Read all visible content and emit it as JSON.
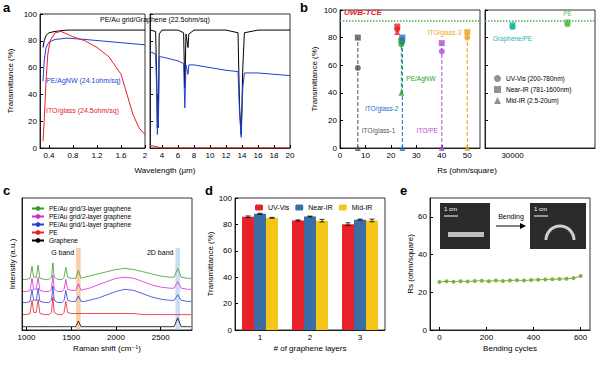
{
  "chart_data": [
    {
      "panel": "a",
      "type": "line",
      "x_label": "Wavelength (μm)",
      "y_label": "Transmittance (%)",
      "segments": [
        {
          "xlim": [
            0.25,
            2
          ],
          "xticks": [
            0.4,
            0.8,
            1.2,
            1.6,
            2
          ]
        },
        {
          "xlim": [
            2.5,
            20
          ],
          "xticks": [
            4,
            6,
            8,
            10,
            12,
            14,
            16,
            18,
            20
          ]
        }
      ],
      "ylim": [
        0,
        100
      ],
      "yticks": [
        0,
        20,
        40,
        60,
        80,
        100
      ],
      "grid": false,
      "series": [
        {
          "name": "PE/Au grid/Graphene (22.5ohm/sq)",
          "color": "#000000",
          "x": [
            0.3,
            0.32,
            0.35,
            0.4,
            0.5,
            0.7,
            1,
            1.5,
            2,
            2.5,
            3.2,
            3.35,
            3.42,
            3.5,
            3.55,
            3.65,
            4,
            6,
            6.7,
            6.85,
            7,
            7.25,
            7.35,
            8,
            10,
            12,
            13.5,
            13.7,
            13.9,
            14.1,
            14.3,
            16,
            18,
            20
          ],
          "values": [
            75,
            80,
            84,
            86,
            87,
            88,
            88,
            88,
            88,
            88,
            87,
            50,
            15,
            40,
            20,
            85,
            88,
            88,
            86,
            45,
            85,
            75,
            85,
            88,
            88,
            88,
            86,
            30,
            10,
            60,
            86,
            88,
            88,
            88
          ]
        },
        {
          "name": "PE/AgNW (24.1ohm/sq)",
          "color": "#1f3fd8",
          "x": [
            0.3,
            0.32,
            0.35,
            0.4,
            0.5,
            0.7,
            1,
            1.5,
            2,
            2.5,
            3.2,
            3.35,
            3.42,
            3.5,
            3.55,
            3.65,
            4,
            6,
            6.7,
            6.85,
            7,
            7.25,
            7.35,
            8,
            10,
            12,
            13.5,
            13.7,
            13.9,
            14.1,
            14.3,
            16,
            18,
            20
          ],
          "values": [
            50,
            65,
            75,
            79,
            81,
            82,
            81,
            79,
            77,
            72,
            70,
            40,
            10,
            35,
            15,
            68,
            68,
            65,
            63,
            30,
            62,
            55,
            62,
            62,
            60,
            58,
            57,
            25,
            8,
            45,
            56,
            56,
            55,
            54
          ]
        },
        {
          "name": "ITO/glass (24.5ohm/sq)",
          "color": "#e8202a",
          "x": [
            0.3,
            0.32,
            0.35,
            0.38,
            0.42,
            0.5,
            0.6,
            0.7,
            0.8,
            1,
            1.2,
            1.4,
            1.6,
            1.7,
            1.8,
            1.9,
            2,
            2.5,
            4,
            20
          ],
          "values": [
            5,
            20,
            50,
            70,
            80,
            86,
            87,
            85,
            83,
            80,
            75,
            68,
            55,
            40,
            25,
            15,
            10,
            2,
            0,
            0
          ]
        }
      ]
    },
    {
      "panel": "b",
      "type": "scatter",
      "x_label": "Rs (ohm/square)",
      "y_label": "Transmittance (%)",
      "segments": [
        {
          "xlim": [
            0,
            55
          ],
          "xticks": [
            0,
            10,
            20,
            30,
            40,
            50
          ]
        },
        {
          "categories": [
            "30000",
            null
          ]
        }
      ],
      "ylim": [
        0,
        100
      ],
      "yticks": [
        0,
        20,
        40,
        60,
        80,
        100
      ],
      "grid": false,
      "legend": "right",
      "series": [
        {
          "name": "UV-Vis (200-780nm)",
          "marker": "circle"
        },
        {
          "name": "Near-IR (781-1600nm)",
          "marker": "square"
        },
        {
          "name": "Mid-IR (2.5-20um)",
          "marker": "triangle"
        }
      ],
      "materials": [
        {
          "name": "ITO/glass-1",
          "color": "#555555",
          "rs": 7,
          "values": [
            58,
            80,
            0
          ]
        },
        {
          "color": "#e8202a",
          "rs": 22.5,
          "values": [
            86,
            88,
            84
          ]
        },
        {
          "name": "PE/AgNW",
          "color": "#2ca02c",
          "rs": 24.1,
          "values": [
            75,
            78,
            40
          ]
        },
        {
          "name": "ITO/glass-2",
          "color": "#1f6fd0",
          "rs": 24.5,
          "values": [
            77,
            80,
            0
          ]
        },
        {
          "name": "ITO/PE",
          "color": "#b04fd8",
          "rs": 40,
          "values": [
            70,
            76,
            0
          ]
        },
        {
          "name": "ITO/glass-3",
          "color": "#f0a020",
          "rs": 50,
          "values": [
            80,
            84,
            0
          ]
        },
        {
          "name": "Graphene/PE",
          "color": "#1fb5a6",
          "rs": 30000,
          "values": [
            88,
            89,
            88
          ]
        },
        {
          "name": "PE",
          "color": "#5cbf4a",
          "rs": null,
          "values": [
            90,
            91,
            90
          ]
        }
      ],
      "threshold": {
        "label": "UWB-TCE",
        "value": 92,
        "color": "#e8202a"
      }
    },
    {
      "panel": "c",
      "type": "line",
      "x_label": "Raman shift (cm⁻¹)",
      "y_label": "Intensity (a.u.)",
      "xlim": [
        950,
        2850
      ],
      "xticks": [
        1000,
        1500,
        2000,
        2500
      ],
      "ylim": [
        0,
        12
      ],
      "tick_labels": "x",
      "grid": false,
      "legend": "top-left",
      "x": [
        960,
        1000,
        1040,
        1062,
        1080,
        1110,
        1130,
        1150,
        1200,
        1250,
        1280,
        1295,
        1310,
        1350,
        1400,
        1420,
        1440,
        1460,
        1500,
        1550,
        1580,
        1610,
        1650,
        1700,
        1800,
        1900,
        2000,
        2100,
        2200,
        2300,
        2400,
        2500,
        2600,
        2650,
        2690,
        2730,
        2800,
        2840
      ],
      "series": [
        {
          "name": "PE/Au grid/3-layer graphene",
          "color": "#3a9d23",
          "values": [
            4.6,
            4.6,
            4.7,
            5.8,
            4.8,
            4.8,
            5.9,
            4.7,
            4.6,
            4.6,
            4.8,
            6.1,
            4.8,
            4.6,
            4.6,
            4.8,
            5.7,
            4.8,
            4.7,
            4.7,
            5.4,
            4.7,
            4.8,
            4.9,
            5.1,
            5.3,
            5.5,
            5.6,
            5.5,
            5.3,
            5.1,
            4.9,
            4.8,
            4.8,
            5.6,
            4.8,
            4.7,
            4.7
          ]
        },
        {
          "name": "PE/Au grid/2-layer graphene",
          "color": "#d62ad6",
          "values": [
            3.5,
            3.5,
            3.6,
            4.7,
            3.7,
            3.7,
            4.8,
            3.6,
            3.5,
            3.5,
            3.7,
            5.0,
            3.7,
            3.5,
            3.5,
            3.7,
            4.6,
            3.7,
            3.6,
            3.6,
            4.2,
            3.6,
            3.7,
            3.8,
            4.1,
            4.4,
            4.7,
            4.8,
            4.7,
            4.4,
            4.1,
            3.9,
            3.8,
            3.8,
            4.4,
            3.8,
            3.7,
            3.7
          ]
        },
        {
          "name": "PE/Au grid/1-layer graphene",
          "color": "#2b3fd6",
          "values": [
            2.5,
            2.5,
            2.6,
            3.7,
            2.7,
            2.7,
            3.8,
            2.6,
            2.5,
            2.5,
            2.7,
            4.0,
            2.7,
            2.5,
            2.5,
            2.7,
            3.6,
            2.7,
            2.6,
            2.6,
            3.1,
            2.6,
            2.6,
            2.7,
            2.9,
            3.2,
            3.5,
            3.7,
            3.6,
            3.3,
            3.0,
            2.8,
            2.7,
            2.7,
            3.2,
            2.7,
            2.6,
            2.6
          ]
        },
        {
          "name": "PE",
          "color": "#e8202a",
          "values": [
            1.4,
            1.4,
            1.5,
            2.7,
            1.6,
            1.6,
            2.8,
            1.5,
            1.4,
            1.4,
            1.6,
            3.0,
            1.6,
            1.4,
            1.4,
            1.6,
            2.6,
            1.6,
            1.5,
            1.5,
            1.5,
            1.5,
            1.5,
            1.5,
            1.5,
            1.5,
            1.5,
            1.5,
            1.5,
            1.4,
            1.4,
            1.4,
            1.4,
            1.4,
            1.4,
            1.4,
            1.4,
            1.4
          ]
        },
        {
          "name": "Graphene",
          "color": "#000000",
          "values": [
            0.3,
            0.3,
            0.3,
            0.3,
            0.3,
            0.3,
            0.3,
            0.3,
            0.3,
            0.3,
            0.3,
            0.3,
            0.3,
            0.3,
            0.3,
            0.3,
            0.3,
            0.3,
            0.3,
            0.3,
            0.8,
            0.3,
            0.3,
            0.3,
            0.3,
            0.3,
            0.3,
            0.3,
            0.3,
            0.3,
            0.3,
            0.3,
            0.3,
            0.3,
            1.1,
            0.3,
            0.3,
            0.3
          ]
        }
      ],
      "bands": [
        {
          "label": "G band",
          "range": [
            1555,
            1605
          ],
          "color": "#f4a460"
        },
        {
          "label": "2D band",
          "range": [
            2665,
            2715
          ],
          "color": "#9cc3e6"
        }
      ]
    },
    {
      "panel": "d",
      "type": "bar",
      "x_label": "# of graphene layers",
      "y_label": "Transmittance (%)",
      "categories": [
        "1",
        "2",
        "3"
      ],
      "ylim": [
        0,
        100
      ],
      "yticks": [
        0,
        20,
        40,
        60,
        80,
        100
      ],
      "grid": false,
      "legend": "top",
      "series": [
        {
          "name": "UV-Vis",
          "color": "#e8202a",
          "values": [
            85.8,
            83.0,
            80.2
          ],
          "errors": [
            0.6,
            0.4,
            1.0
          ]
        },
        {
          "name": "Near-IR",
          "color": "#3a6ea5",
          "values": [
            88.0,
            86.0,
            83.6
          ],
          "errors": [
            0.4,
            0.3,
            0.4
          ]
        },
        {
          "name": "Mid-IR",
          "color": "#f5c518",
          "values": [
            85.0,
            82.8,
            83.0
          ],
          "errors": [
            0.3,
            1.0,
            1.0
          ]
        }
      ]
    },
    {
      "panel": "e",
      "type": "line",
      "x_label": "Bending cycles",
      "y_label": "Rs (ohm/square)",
      "xlim": [
        -40,
        640
      ],
      "xticks": [
        0,
        200,
        400,
        600
      ],
      "ylim": [
        0,
        70
      ],
      "yticks": [
        0,
        20,
        40,
        60
      ],
      "grid": false,
      "x": [
        0,
        30,
        60,
        90,
        120,
        150,
        180,
        210,
        240,
        270,
        300,
        330,
        360,
        390,
        420,
        450,
        480,
        510,
        540,
        570,
        600
      ],
      "series": [
        {
          "color": "#7cb342",
          "marker": "circle",
          "values": [
            25.5,
            25.8,
            25.6,
            25.9,
            25.7,
            26.0,
            26.1,
            25.9,
            26.2,
            26.0,
            26.3,
            26.4,
            26.2,
            26.5,
            26.6,
            26.8,
            26.9,
            27.0,
            27.2,
            27.5,
            28.6
          ]
        }
      ],
      "annotations": [
        "1 cm",
        "Bending",
        "1 cm"
      ]
    }
  ]
}
